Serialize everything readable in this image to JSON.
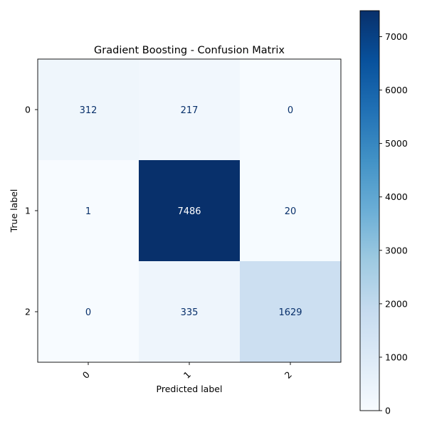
{
  "chart_data": {
    "type": "heatmap",
    "title": "Gradient Boosting - Confusion Matrix",
    "xlabel": "Predicted label",
    "ylabel": "True label",
    "x_categories": [
      "0",
      "1",
      "2"
    ],
    "y_categories": [
      "0",
      "1",
      "2"
    ],
    "values": [
      [
        312,
        217,
        0
      ],
      [
        1,
        7486,
        20
      ],
      [
        0,
        335,
        1629
      ]
    ],
    "colormap": "Blues",
    "colorbar": {
      "min": 0,
      "max": 7486,
      "ticks": [
        0,
        1000,
        2000,
        3000,
        4000,
        5000,
        6000,
        7000
      ]
    },
    "x_tick_rotation_deg": 45,
    "colors": {
      "low": "#f7fbff",
      "high": "#08306b",
      "text_light": "#ffffff",
      "text_dark": "#08306b"
    }
  }
}
